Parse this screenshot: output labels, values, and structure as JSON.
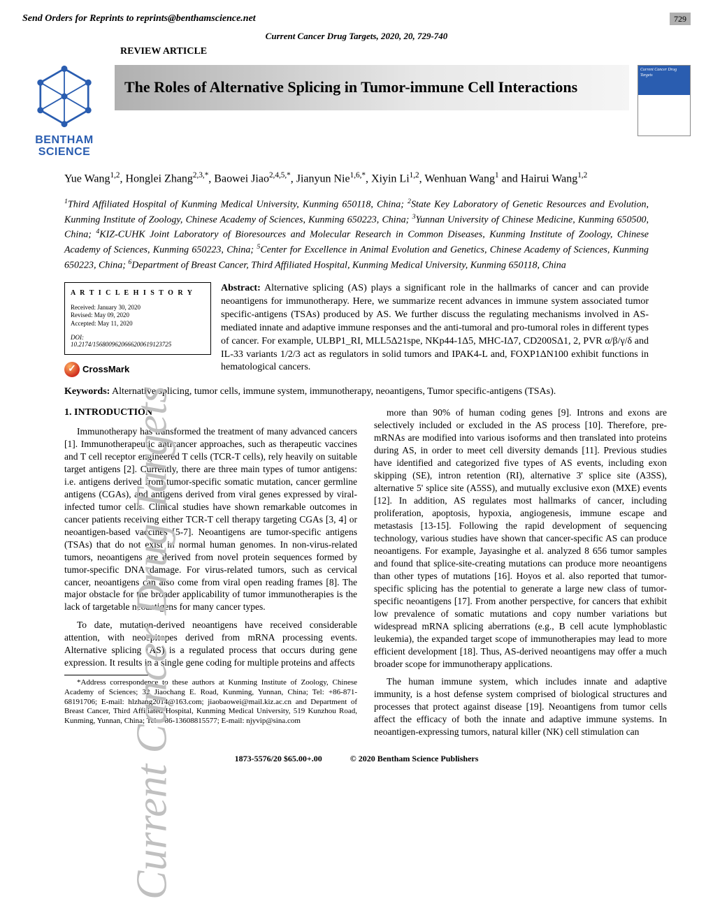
{
  "header": {
    "reprints_line": "Send Orders for Reprints to reprints@benthamscience.net",
    "page_number": "729",
    "journal_line": "Current Cancer Drug Targets, 2020, 20, 729-740",
    "article_type": "REVIEW ARTICLE",
    "title": "The Roles of Alternative Splicing in Tumor-immune Cell Interactions",
    "publisher_logo_text_1": "BENTHAM",
    "publisher_logo_text_2": "SCIENCE",
    "cover_text": "Current Cancer Drug Targets"
  },
  "authors_html": "Yue Wang<sup>1,2</sup>, Honglei Zhang<sup>2,3,*</sup>, Baowei Jiao<sup>2,4,5,*</sup>, Jianyun Nie<sup>1,6,*</sup>, Xiyin Li<sup>1,2</sup>, Wenhuan Wang<sup>1</sup> and Hairui Wang<sup>1,2</sup>",
  "affiliations_html": "<sup>1</sup>Third Affiliated Hospital of Kunming Medical University, Kunming 650118, China; <sup>2</sup>State Key Laboratory of Genetic Resources and Evolution, Kunming Institute of Zoology, Chinese Academy of Sciences, Kunming 650223, China; <sup>3</sup>Yunnan University of Chinese Medicine, Kunming 650500, China; <sup>4</sup>KIZ-CUHK Joint Laboratory of Bioresources and Molecular Research in Common Diseases, Kunming Institute of Zoology, Chinese Academy of Sciences, Kunming 650223, China; <sup>5</sup>Center for Excellence in Animal Evolution and Genetics, Chinese Academy of Sciences, Kunming 650223, China; <sup>6</sup>Department of Breast Cancer, Third Affiliated Hospital, Kunming Medical University, Kunming 650118, China",
  "history": {
    "box_title": "A R T I C L E  H I S T O R Y",
    "received": "Received: January 30, 2020",
    "revised": "Revised: May 09, 2020",
    "accepted": "Accepted: May 11, 2020",
    "doi_label": "DOI:",
    "doi_value": "10.2174/1568009620666200619123725",
    "crossmark": "CrossMark"
  },
  "abstract_html": "<b>Abstract:</b> Alternative splicing (AS) plays a significant role in the hallmarks of cancer and can provide neoantigens for immunotherapy. Here, we summarize recent advances in immune system associated tumor specific-antigens (TSAs) produced by AS. We further discuss the regulating mechanisms involved in AS-mediated innate and adaptive immune responses and the anti-tumoral and pro-tumoral roles in different types of cancer. For example, ULBP1_RI, MLL5Δ21spe, NKp44-1Δ5, MHC-IΔ7, CD200SΔ1, 2, PVR α/β/γ/δ and IL-33 variants 1/2/3 act as regulators in solid tumors and IPAK4-L and, FOXP1ΔN100 exhibit functions in hematological cancers.",
  "keywords_html": "<b>Keywords:</b> Alternative splicing, tumor cells, immune system, immunotherapy, neoantigens, Tumor specific-antigens (TSAs).",
  "body": {
    "intro_heading": "1. INTRODUCTION",
    "left_p1": "Immunotherapy has transformed the treatment of many advanced cancers [1]. Immunotherapeutic anticancer approaches, such as therapeutic vaccines and T cell receptor engineered T cells (TCR-T cells), rely heavily on suitable target antigens [2]. Currently, there are three main types of tumor antigens: i.e. antigens derived from tumor-specific somatic mutation, cancer germline antigens (CGAs), and antigens derived from viral genes expressed by viral-infected tumor cells. Clinical studies have shown remarkable outcomes in cancer patients receiving either TCR-T cell therapy targeting CGAs [3, 4] or neoantigen-based vaccines [5-7]. Neoantigens are tumor-specific antigens (TSAs) that do not exist in normal human genomes. In non-virus-related tumors, neoantigens are derived from novel protein sequences formed by tumor-specific DNA damage. For virus-related tumors, such as cervical cancer, neoantigens can also come from viral open reading frames [8]. The major obstacle for the broader applicability of tumor immunotherapies is the lack of targetable neoantigens for many cancer types.",
    "left_p2": "To date, mutation-derived neoantigens have received considerable attention, with neoepitopes derived from mRNA processing events. Alternative splicing (AS) is a regulated process that occurs during gene expression. It results in a single gene coding for multiple proteins and affects",
    "correspondence": "*Address correspondence to these authors at Kunming Institute of Zoology, Chinese Academy of Sciences; 32 Jiaochang E. Road, Kunming, Yunnan, China; Tel: +86-871-68191706; E-mail: hlzhang2014@163.com; jiaobaowei@mail.kiz.ac.cn and Department of Breast Cancer, Third Affiliated Hospital, Kunming Medical University, 519 Kunzhou Road, Kunming, Yunnan, China; Tel: +86-13608815577; E-mail: njyvip@sina.com",
    "right_p1": "more than 90% of human coding genes [9]. Introns and exons are selectively included or excluded in the AS process [10]. Therefore, pre-mRNAs are modified into various isoforms and then translated into proteins during AS, in order to meet cell diversity demands [11]. Previous studies have identified and categorized five types of AS events, including exon skipping (SE), intron retention (RI), alternative 3' splice site (A3SS), alternative 5' splice site (A5SS), and mutually exclusive exon (MXE) events [12]. In addition, AS regulates most hallmarks of cancer, including proliferation, apoptosis, hypoxia, angiogenesis, immune escape and metastasis [13-15]. Following the rapid development of sequencing technology, various studies have shown that cancer-specific AS can produce neoantigens. For example, Jayasinghe et al. analyzed 8  656 tumor samples and found that splice-site-creating mutations can produce more neoantigens than other types of mutations [16]. Hoyos et al. also reported that tumor-specific splicing has the potential to generate a large new class of tumor-specific neoantigens [17]. From another perspective, for cancers that exhibit low prevalence of somatic mutations and copy number variations but widespread mRNA splicing aberrations (e.g., B cell acute lymphoblastic leukemia), the expanded target scope of immunotherapies may lead to more efficient development [18]. Thus, AS-derived neoantigens may offer a much broader scope for immunotherapy applications.",
    "right_p2": "The human immune system, which includes innate and adaptive immunity, is a host defense system comprised of biological structures and processes that protect against disease [19]. Neoantigens from tumor cells affect the efficacy of both the innate and adaptive immune systems. In neoantigen-expressing tumors, natural killer (NK) cell stimulation can"
  },
  "footer": {
    "issn_price": "1873-5576/20 $65.00+.00",
    "copyright": "© 2020 Bentham Science Publishers"
  },
  "watermark": "Current Cancer Drug Targets",
  "colors": {
    "logo_blue": "#2a5db0",
    "watermark_gray": "#c0c0c0",
    "topbox_gray": "#b0b0b0"
  }
}
